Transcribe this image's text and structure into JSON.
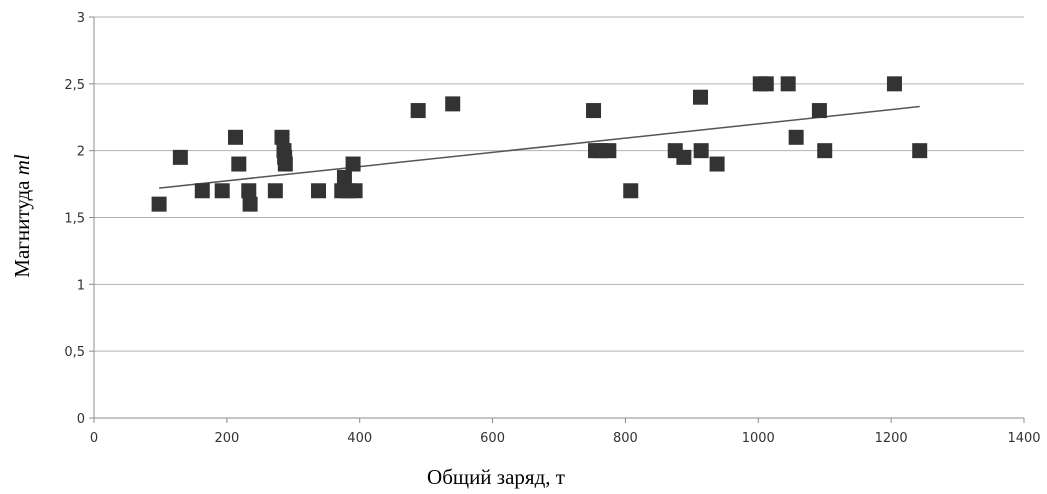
{
  "chart_data": {
    "type": "scatter",
    "title": "",
    "xlabel": "Общий заряд, т",
    "ylabel": "Магнитуда ml",
    "ylabel_main": "Магнитуда ",
    "ylabel_italic": "ml",
    "xlim": [
      0,
      1400
    ],
    "ylim": [
      0,
      3
    ],
    "x_ticks": [
      0,
      200,
      400,
      600,
      800,
      1000,
      1200,
      1400
    ],
    "x_tick_labels": [
      "0",
      "200",
      "400",
      "600",
      "800",
      "1000",
      "1200",
      "1400"
    ],
    "y_ticks": [
      0,
      0.5,
      1,
      1.5,
      2,
      2.5,
      3
    ],
    "y_tick_labels": [
      "0",
      "0,5",
      "1",
      "1,5",
      "2",
      "2,5",
      "3"
    ],
    "grid": "horizontal",
    "marker": "square",
    "marker_color": "#333333",
    "grid_color": "#b3b3b3",
    "points": [
      {
        "x": 98,
        "y": 1.6
      },
      {
        "x": 130,
        "y": 1.95
      },
      {
        "x": 163,
        "y": 1.7
      },
      {
        "x": 193,
        "y": 1.7
      },
      {
        "x": 213,
        "y": 2.1
      },
      {
        "x": 218,
        "y": 1.9
      },
      {
        "x": 233,
        "y": 1.7
      },
      {
        "x": 235,
        "y": 1.6
      },
      {
        "x": 273,
        "y": 1.7
      },
      {
        "x": 283,
        "y": 2.1
      },
      {
        "x": 286,
        "y": 2.0
      },
      {
        "x": 287,
        "y": 1.95
      },
      {
        "x": 288,
        "y": 1.9
      },
      {
        "x": 338,
        "y": 1.7
      },
      {
        "x": 373,
        "y": 1.7
      },
      {
        "x": 377,
        "y": 1.8
      },
      {
        "x": 382,
        "y": 1.7
      },
      {
        "x": 390,
        "y": 1.9
      },
      {
        "x": 393,
        "y": 1.7
      },
      {
        "x": 488,
        "y": 2.3
      },
      {
        "x": 540,
        "y": 2.35
      },
      {
        "x": 752,
        "y": 2.3
      },
      {
        "x": 755,
        "y": 2.0
      },
      {
        "x": 763,
        "y": 2.0
      },
      {
        "x": 775,
        "y": 2.0
      },
      {
        "x": 808,
        "y": 1.7
      },
      {
        "x": 875,
        "y": 2.0
      },
      {
        "x": 888,
        "y": 1.95
      },
      {
        "x": 913,
        "y": 2.4
      },
      {
        "x": 914,
        "y": 2.0
      },
      {
        "x": 938,
        "y": 1.9
      },
      {
        "x": 1003,
        "y": 2.5
      },
      {
        "x": 1012,
        "y": 2.5
      },
      {
        "x": 1045,
        "y": 2.5
      },
      {
        "x": 1057,
        "y": 2.1
      },
      {
        "x": 1092,
        "y": 2.3
      },
      {
        "x": 1100,
        "y": 2.0
      },
      {
        "x": 1205,
        "y": 2.5
      },
      {
        "x": 1243,
        "y": 2.0
      }
    ],
    "trendline": {
      "x": [
        98,
        1243
      ],
      "y": [
        1.72,
        2.33
      ],
      "color": "#555555"
    }
  }
}
